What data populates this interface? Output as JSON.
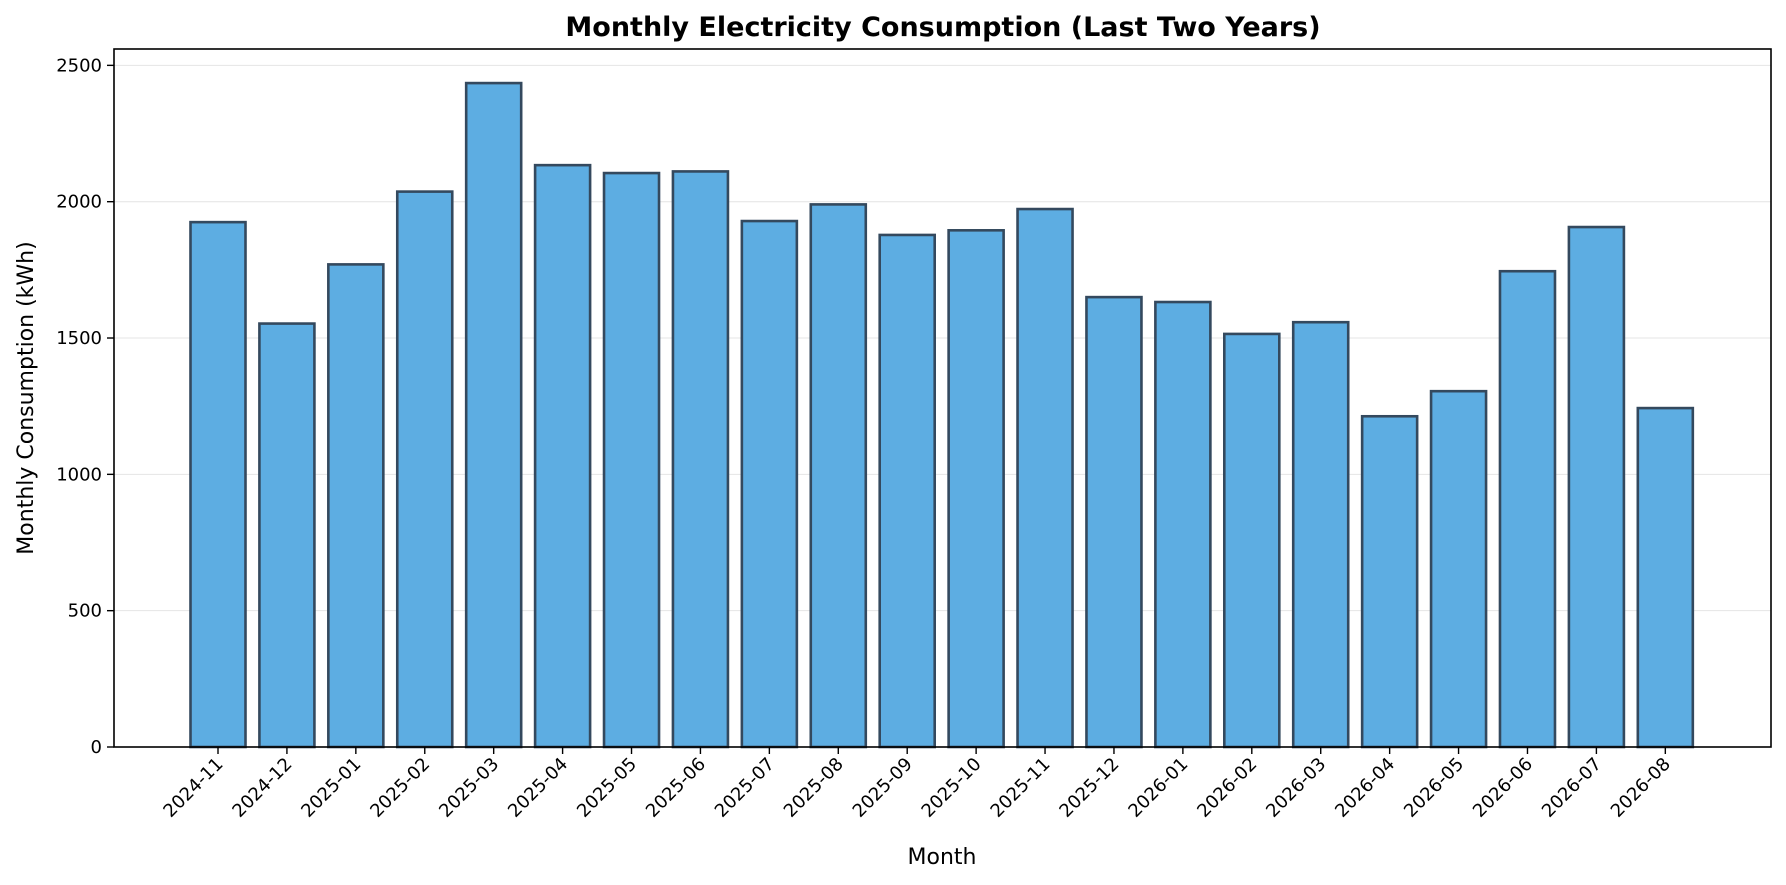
{
  "chart_data": {
    "type": "bar",
    "title": "Monthly Electricity Consumption (Last Two Years)",
    "xlabel": "Month",
    "ylabel": "Monthly Consumption (kWh)",
    "ylim": [
      0,
      2560
    ],
    "yticks": [
      0,
      500,
      1000,
      1500,
      2000,
      2500
    ],
    "grid": "y-only",
    "bar_color": "#5dade2",
    "bar_edge_color": "#34495e",
    "categories": [
      "2024-11",
      "2024-12",
      "2025-01",
      "2025-02",
      "2025-03",
      "2025-04",
      "2025-05",
      "2025-06",
      "2025-07",
      "2025-08",
      "2025-09",
      "2025-10",
      "2025-11",
      "2025-12",
      "2026-01",
      "2026-02",
      "2026-03",
      "2026-04",
      "2026-05",
      "2026-06",
      "2026-07",
      "2026-08"
    ],
    "values": [
      1925,
      1553,
      1770,
      2037,
      2435,
      2134,
      2105,
      2111,
      1929,
      1990,
      1878,
      1895,
      1973,
      1650,
      1632,
      1515,
      1558,
      1213,
      1305,
      1745,
      1907,
      1243
    ]
  }
}
